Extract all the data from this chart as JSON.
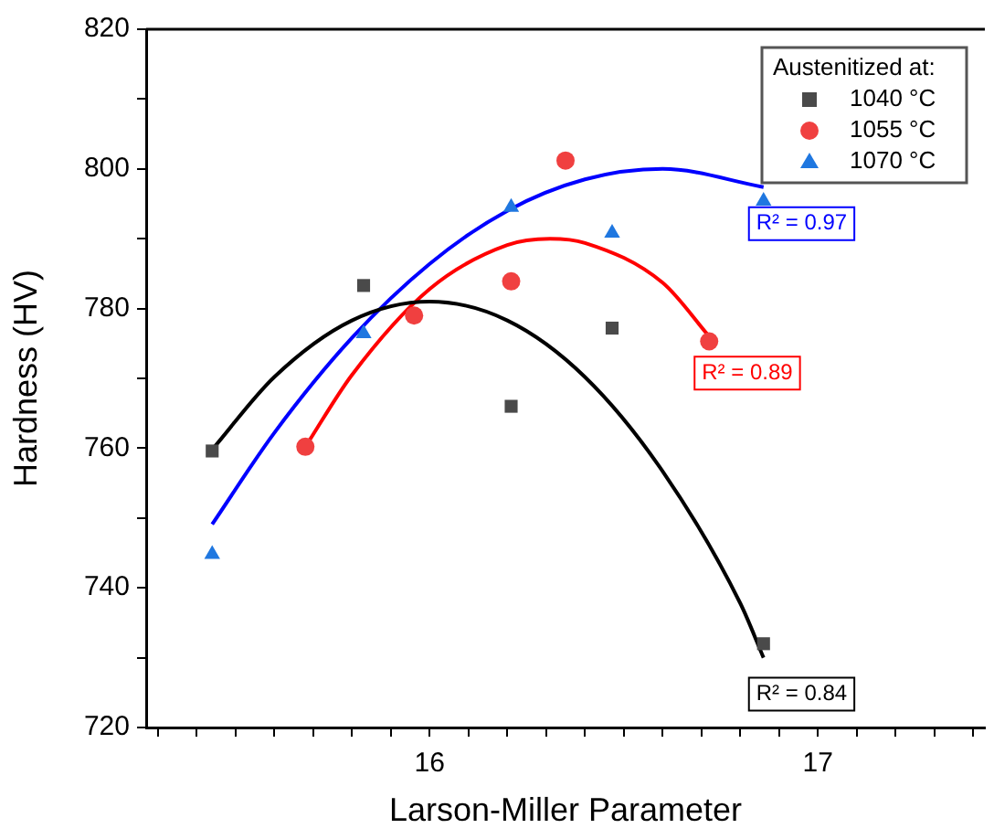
{
  "chart_data": {
    "type": "scatter",
    "xlabel": "Larson-Miller Parameter",
    "ylabel": "Hardness (HV)",
    "legend_title": "Austenitized at:",
    "legend": "top right",
    "grid": false,
    "xlim": [
      15.27,
      17.43
    ],
    "ylim": [
      720,
      820
    ],
    "xticks": [
      {
        "value": 15.3,
        "label": null
      },
      {
        "value": 15.4,
        "label": null
      },
      {
        "value": 15.5,
        "label": null
      },
      {
        "value": 15.6,
        "label": null
      },
      {
        "value": 15.7,
        "label": null
      },
      {
        "value": 15.8,
        "label": null
      },
      {
        "value": 15.9,
        "label": null
      },
      16,
      {
        "value": 16.1,
        "label": null
      },
      {
        "value": 16.2,
        "label": null
      },
      {
        "value": 16.3,
        "label": null
      },
      {
        "value": 16.4,
        "label": null
      },
      {
        "value": 16.5,
        "label": null
      },
      {
        "value": 16.6,
        "label": null
      },
      {
        "value": 16.7,
        "label": null
      },
      {
        "value": 16.8,
        "label": null
      },
      {
        "value": 16.9,
        "label": null
      },
      17,
      {
        "value": 17.1,
        "label": null
      },
      {
        "value": 17.2,
        "label": null
      },
      {
        "value": 17.3,
        "label": null
      },
      {
        "value": 17.4,
        "label": null
      }
    ],
    "yticks": [
      720,
      {
        "value": 730,
        "label": null
      },
      740,
      {
        "value": 750,
        "label": null
      },
      760,
      {
        "value": 770,
        "label": null
      },
      780,
      {
        "value": 790,
        "label": null
      },
      800,
      {
        "value": 810,
        "label": null
      },
      820
    ],
    "series": [
      {
        "name": "1040 °C",
        "type": "scatter",
        "marker": "square",
        "color": "#4a4a4a",
        "x": [
          15.44,
          15.83,
          16.21,
          16.47,
          16.86
        ],
        "values": [
          759.6,
          783.3,
          766,
          777.2,
          732
        ]
      },
      {
        "name": "1055 °C",
        "type": "scatter",
        "marker": "circle",
        "color": "#f04040",
        "x": [
          15.68,
          15.96,
          16.21,
          16.35,
          16.72
        ],
        "values": [
          760.2,
          779,
          783.9,
          801.2,
          775.3
        ]
      },
      {
        "name": "1070 °C",
        "type": "scatter",
        "marker": "triangle",
        "color": "#1f77e0",
        "x": [
          15.44,
          15.83,
          16.21,
          16.47,
          16.86
        ],
        "values": [
          744.8,
          776.4,
          794.5,
          790.8,
          795.4
        ]
      },
      {
        "type": "line",
        "marker": "none",
        "color": "#000000",
        "x": [
          15.44,
          15.6,
          15.8,
          16.0,
          16.2,
          16.4,
          16.6,
          16.8,
          16.86
        ],
        "values": [
          759.8,
          770.2,
          778.3,
          781,
          778.3,
          770.2,
          756.7,
          737.8,
          730
        ]
      },
      {
        "type": "line",
        "marker": "none",
        "color": "#ff0000",
        "x": [
          15.68,
          15.8,
          16.0,
          16.2,
          16.31,
          16.4,
          16.6,
          16.72
        ],
        "values": [
          760.2,
          770.5,
          782.8,
          789.1,
          790,
          789.4,
          783.7,
          776
        ]
      },
      {
        "type": "line",
        "marker": "none",
        "color": "#0000ff",
        "x": [
          15.44,
          15.6,
          15.8,
          16.0,
          16.2,
          16.4,
          16.6,
          16.86
        ],
        "values": [
          749.1,
          762.2,
          775.8,
          786.4,
          794,
          798.5,
          800,
          797.4
        ]
      }
    ],
    "annotations": [
      "R² = 0.84",
      "R² = 0.89",
      "R² = 0.97"
    ]
  }
}
